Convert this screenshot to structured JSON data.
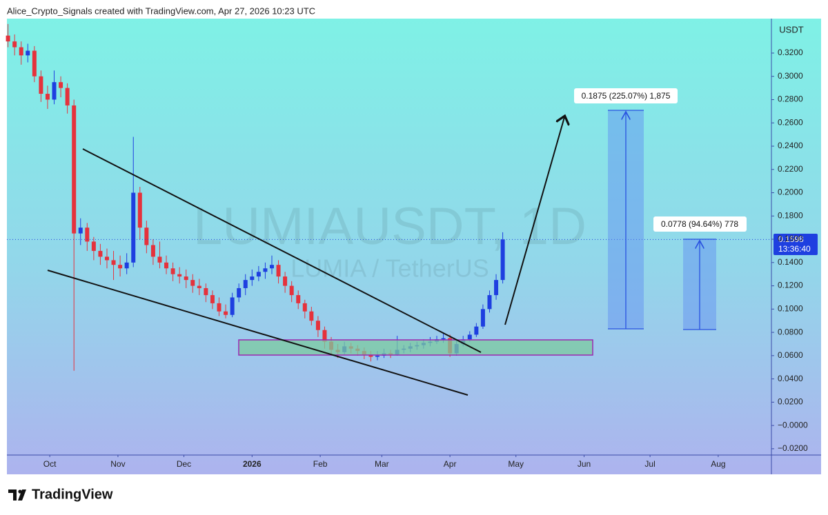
{
  "chart_data": {
    "type": "candlestick",
    "header": "Alice_Crypto_Signals created with TradingView.com, Apr 27, 2026 10:23 UTC",
    "watermark_title": "LUMIAUSDT, 1D",
    "watermark_subtitle": "LUMIA / TetherUS",
    "currency": "USDT",
    "countdown": "13:36:40",
    "brand": "TradingView",
    "annotations": [
      "0.1875 (225.07%) 1,875",
      "0.0778 (94.64%) 778"
    ],
    "up_color": "#1e3fe0",
    "down_color": "#e5323c",
    "grid": false,
    "x": [
      -19,
      -16,
      -13,
      -10,
      -7,
      -4,
      -1,
      2,
      5,
      8,
      11,
      14,
      17,
      20,
      23,
      26,
      29,
      32,
      35,
      38,
      41,
      44,
      47,
      50,
      53,
      56,
      59,
      62,
      65,
      68,
      71,
      74,
      77,
      80,
      83,
      86,
      89,
      92,
      95,
      98,
      101,
      104,
      107,
      110,
      113,
      116,
      119,
      122,
      125,
      128,
      131,
      134,
      137,
      140,
      143,
      146,
      149,
      152,
      155,
      158,
      161,
      164,
      167,
      170,
      173,
      176,
      179,
      182,
      185,
      188,
      191,
      194,
      197,
      200,
      203,
      206
    ],
    "open": [
      0.335,
      0.33,
      0.325,
      0.318,
      0.322,
      0.3,
      0.285,
      0.28,
      0.295,
      0.29,
      0.275,
      0.165,
      0.17,
      0.158,
      0.15,
      0.145,
      0.142,
      0.138,
      0.135,
      0.14,
      0.2,
      0.17,
      0.155,
      0.145,
      0.14,
      0.135,
      0.13,
      0.128,
      0.125,
      0.12,
      0.118,
      0.112,
      0.105,
      0.098,
      0.095,
      0.11,
      0.118,
      0.125,
      0.128,
      0.132,
      0.135,
      0.138,
      0.128,
      0.12,
      0.112,
      0.105,
      0.098,
      0.09,
      0.082,
      0.072,
      0.065,
      0.063,
      0.068,
      0.066,
      0.064,
      0.061,
      0.059,
      0.06,
      0.062,
      0.061,
      0.065,
      0.066,
      0.068,
      0.069,
      0.071,
      0.072,
      0.074,
      0.075,
      0.062,
      0.07,
      0.074,
      0.078,
      0.085,
      0.1,
      0.112,
      0.125
    ],
    "high": [
      0.345,
      0.336,
      0.33,
      0.328,
      0.326,
      0.305,
      0.292,
      0.305,
      0.3,
      0.294,
      0.28,
      0.178,
      0.174,
      0.162,
      0.156,
      0.152,
      0.15,
      0.146,
      0.148,
      0.248,
      0.205,
      0.176,
      0.16,
      0.158,
      0.146,
      0.14,
      0.136,
      0.134,
      0.13,
      0.126,
      0.122,
      0.116,
      0.11,
      0.104,
      0.114,
      0.122,
      0.13,
      0.134,
      0.137,
      0.14,
      0.146,
      0.142,
      0.132,
      0.124,
      0.116,
      0.108,
      0.102,
      0.094,
      0.085,
      0.076,
      0.07,
      0.072,
      0.071,
      0.069,
      0.067,
      0.064,
      0.064,
      0.066,
      0.065,
      0.077,
      0.069,
      0.071,
      0.072,
      0.074,
      0.076,
      0.077,
      0.079,
      0.078,
      0.073,
      0.077,
      0.081,
      0.088,
      0.104,
      0.116,
      0.13,
      0.166
    ],
    "low": [
      0.325,
      0.318,
      0.31,
      0.312,
      0.295,
      0.278,
      0.272,
      0.276,
      0.282,
      0.268,
      0.047,
      0.155,
      0.15,
      0.142,
      0.138,
      0.135,
      0.125,
      0.128,
      0.13,
      0.136,
      0.16,
      0.148,
      0.138,
      0.135,
      0.13,
      0.124,
      0.122,
      0.118,
      0.114,
      0.112,
      0.106,
      0.1,
      0.094,
      0.092,
      0.093,
      0.106,
      0.112,
      0.12,
      0.124,
      0.126,
      0.13,
      0.122,
      0.114,
      0.106,
      0.1,
      0.092,
      0.086,
      0.076,
      0.066,
      0.06,
      0.058,
      0.061,
      0.062,
      0.06,
      0.057,
      0.055,
      0.056,
      0.058,
      0.058,
      0.06,
      0.062,
      0.063,
      0.065,
      0.066,
      0.068,
      0.07,
      0.071,
      0.059,
      0.06,
      0.068,
      0.072,
      0.076,
      0.083,
      0.097,
      0.108,
      0.122
    ],
    "close": [
      0.33,
      0.325,
      0.318,
      0.322,
      0.3,
      0.285,
      0.28,
      0.295,
      0.29,
      0.275,
      0.165,
      0.17,
      0.158,
      0.15,
      0.145,
      0.142,
      0.138,
      0.135,
      0.14,
      0.2,
      0.17,
      0.155,
      0.145,
      0.14,
      0.135,
      0.13,
      0.128,
      0.125,
      0.12,
      0.118,
      0.112,
      0.105,
      0.098,
      0.095,
      0.11,
      0.118,
      0.125,
      0.128,
      0.132,
      0.135,
      0.138,
      0.128,
      0.12,
      0.112,
      0.105,
      0.098,
      0.09,
      0.082,
      0.072,
      0.065,
      0.063,
      0.068,
      0.066,
      0.064,
      0.061,
      0.059,
      0.06,
      0.062,
      0.061,
      0.065,
      0.066,
      0.068,
      0.069,
      0.071,
      0.072,
      0.074,
      0.075,
      0.062,
      0.07,
      0.074,
      0.078,
      0.085,
      0.1,
      0.112,
      0.125,
      0.1598
    ],
    "xlim": [
      -19.5,
      328.2
    ],
    "xticks": [
      {
        "value": 0,
        "label": "Oct"
      },
      {
        "value": 31,
        "label": "Nov"
      },
      {
        "value": 61,
        "label": "Dec"
      },
      {
        "value": 92,
        "label": "2026"
      },
      {
        "value": 123,
        "label": "Feb"
      },
      {
        "value": 151,
        "label": "Mar"
      },
      {
        "value": 182,
        "label": "Apr"
      },
      {
        "value": 212,
        "label": "May"
      },
      {
        "value": 243,
        "label": "Jun"
      },
      {
        "value": 273,
        "label": "Jul"
      },
      {
        "value": 304,
        "label": "Aug"
      }
    ],
    "ylim": [
      -0.0254,
      0.3496
    ],
    "yticks": [
      {
        "value": 0.32,
        "label": "0.3200"
      },
      {
        "value": 0.3,
        "label": "0.3000"
      },
      {
        "value": 0.28,
        "label": "0.2800"
      },
      {
        "value": 0.26,
        "label": "0.2600"
      },
      {
        "value": 0.24,
        "label": "0.2400"
      },
      {
        "value": 0.22,
        "label": "0.2200"
      },
      {
        "value": 0.2,
        "label": "0.2000"
      },
      {
        "value": 0.18,
        "label": "0.1800"
      },
      {
        "value": 0.16,
        "label": "0.1600"
      },
      {
        "value": 0.14,
        "label": "0.1400"
      },
      {
        "value": 0.12,
        "label": "0.1200"
      },
      {
        "value": 0.1,
        "label": "0.1000"
      },
      {
        "value": 0.08,
        "label": "0.0800"
      },
      {
        "value": 0.06,
        "label": "0.0600"
      },
      {
        "value": 0.04,
        "label": "0.0400"
      },
      {
        "value": 0.02,
        "label": "0.0200"
      },
      {
        "value": 0,
        "label": "−0.0000"
      },
      {
        "value": -0.02,
        "label": "−0.0200"
      }
    ]
  }
}
